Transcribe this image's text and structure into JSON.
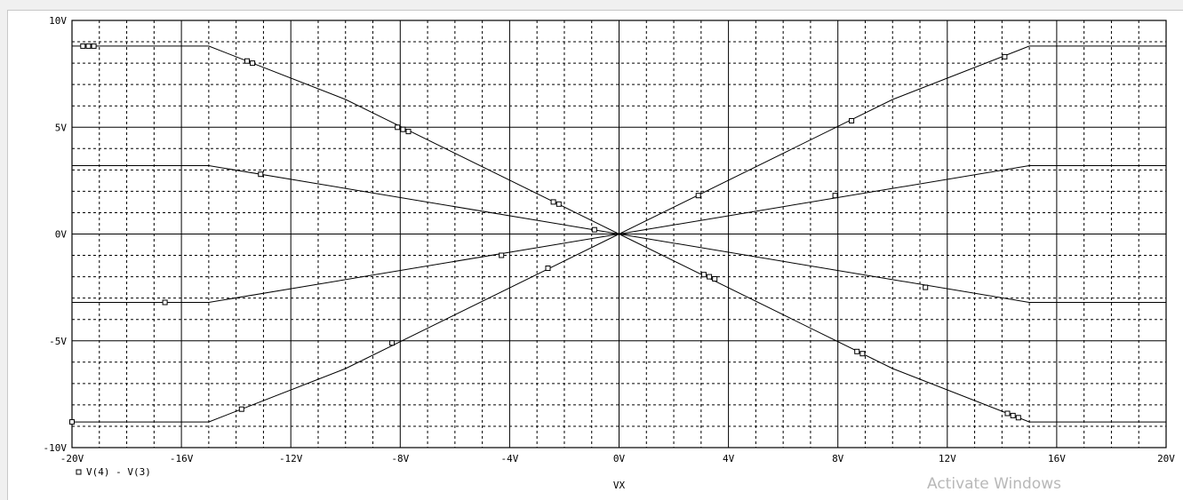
{
  "watermark": "Activate Windows",
  "colors": {
    "background": "#ffffff",
    "trace": "#000000",
    "grid": "#000000"
  },
  "chart_data": {
    "type": "line",
    "title": "",
    "xlabel": "VX",
    "ylabel": "",
    "xlim": [
      -20,
      20
    ],
    "ylim": [
      -10,
      10
    ],
    "grid": true,
    "grid_minor": "dashed",
    "legend_position": "bottom-left",
    "x_ticks": [
      {
        "value": -20,
        "label": "-20V"
      },
      {
        "value": -16,
        "label": "-16V"
      },
      {
        "value": -12,
        "label": "-12V"
      },
      {
        "value": -8,
        "label": "-8V"
      },
      {
        "value": -4,
        "label": "-4V"
      },
      {
        "value": 0,
        "label": "0V"
      },
      {
        "value": 4,
        "label": "4V"
      },
      {
        "value": 8,
        "label": "8V"
      },
      {
        "value": 12,
        "label": "12V"
      },
      {
        "value": 16,
        "label": "16V"
      },
      {
        "value": 20,
        "label": "20V"
      }
    ],
    "y_ticks": [
      {
        "value": 10,
        "label": "10V"
      },
      {
        "value": 5,
        "label": "5V"
      },
      {
        "value": 0,
        "label": "0V"
      },
      {
        "value": -5,
        "label": "-5V"
      },
      {
        "value": -10,
        "label": "-10V"
      }
    ],
    "legend": [
      {
        "marker": "square",
        "label": "V(4) - V(3)"
      }
    ],
    "series": [
      {
        "points": [
          [
            -20,
            8.8
          ],
          [
            -15,
            8.8
          ],
          [
            -10,
            6.3
          ],
          [
            0,
            0
          ],
          [
            10,
            -6.3
          ],
          [
            15,
            -8.8
          ],
          [
            20,
            -8.8
          ]
        ],
        "markers": [
          [
            -19.6,
            8.8
          ],
          [
            -19.4,
            8.8
          ],
          [
            -19.2,
            8.8
          ],
          [
            -13.6,
            8.1
          ],
          [
            -13.4,
            8.0
          ],
          [
            -8.1,
            5.0
          ],
          [
            -7.9,
            4.9
          ],
          [
            -7.7,
            4.8
          ],
          [
            -2.4,
            1.5
          ],
          [
            -2.2,
            1.4
          ],
          [
            3.1,
            -1.9
          ],
          [
            3.3,
            -2.0
          ],
          [
            3.5,
            -2.1
          ],
          [
            8.7,
            -5.5
          ],
          [
            8.9,
            -5.6
          ],
          [
            14.2,
            -8.4
          ],
          [
            14.4,
            -8.5
          ],
          [
            14.6,
            -8.6
          ]
        ]
      },
      {
        "points": [
          [
            -20,
            -8.8
          ],
          [
            -15,
            -8.8
          ],
          [
            -10,
            -6.3
          ],
          [
            0,
            0
          ],
          [
            10,
            6.3
          ],
          [
            15,
            8.8
          ],
          [
            20,
            8.8
          ]
        ],
        "markers": [
          [
            -20.0,
            -8.8
          ],
          [
            -13.8,
            -8.2
          ],
          [
            -8.3,
            -5.1
          ],
          [
            -2.6,
            -1.6
          ],
          [
            2.9,
            1.8
          ],
          [
            8.5,
            5.3
          ],
          [
            14.1,
            8.3
          ]
        ]
      },
      {
        "points": [
          [
            -20,
            3.2
          ],
          [
            -15,
            3.2
          ],
          [
            0,
            0
          ],
          [
            15,
            -3.2
          ],
          [
            20,
            -3.2
          ]
        ],
        "markers": [
          [
            -13.1,
            2.8
          ],
          [
            -0.9,
            0.2
          ],
          [
            11.2,
            -2.5
          ]
        ]
      },
      {
        "points": [
          [
            -20,
            -3.2
          ],
          [
            -15,
            -3.2
          ],
          [
            0,
            0
          ],
          [
            15,
            3.2
          ],
          [
            20,
            3.2
          ]
        ],
        "markers": [
          [
            -16.6,
            -3.2
          ],
          [
            -4.3,
            -1.0
          ],
          [
            7.9,
            1.8
          ]
        ]
      }
    ]
  }
}
